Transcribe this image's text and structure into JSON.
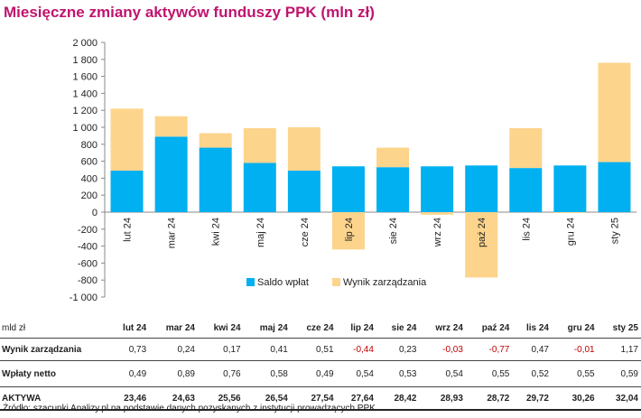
{
  "title": "Miesięczne zmiany aktywów funduszy PPK (mln zł)",
  "colors": {
    "saldo": "#00b0f0",
    "wynik": "#fdd48c",
    "title": "#c0146e",
    "negative": "#c00000"
  },
  "chart_data": {
    "type": "bar",
    "stacked": true,
    "categories": [
      "lut 24",
      "mar 24",
      "kwi 24",
      "maj 24",
      "cze 24",
      "lip 24",
      "sie 24",
      "wrz 24",
      "paź 24",
      "lis 24",
      "gru 24",
      "sty 25"
    ],
    "series": [
      {
        "name": "Saldo wpłat",
        "values": [
          490,
          890,
          760,
          580,
          490,
          540,
          530,
          540,
          550,
          520,
          550,
          590
        ]
      },
      {
        "name": "Wynik zarządzania",
        "values": [
          730,
          240,
          170,
          410,
          510,
          -440,
          230,
          -30,
          -770,
          470,
          -10,
          1170
        ]
      }
    ],
    "ylim": [
      -1000,
      2000
    ],
    "yticks": [
      -1000,
      -800,
      -600,
      -400,
      -200,
      0,
      200,
      400,
      600,
      800,
      1000,
      1200,
      1400,
      1600,
      1800,
      2000
    ],
    "ytick_labels": [
      "-1 000",
      "-800",
      "-600",
      "-400",
      "-200",
      "0",
      "200",
      "400",
      "600",
      "800",
      "1 000",
      "1 200",
      "1 400",
      "1 600",
      "1 800",
      "2 000"
    ],
    "legend": [
      "Saldo wpłat",
      "Wynik zarządzania"
    ],
    "legend_position": "bottom"
  },
  "table": {
    "unit_label": "mld zł",
    "columns": [
      "lut 24",
      "mar 24",
      "kwi 24",
      "maj 24",
      "cze 24",
      "lip 24",
      "sie 24",
      "wrz 24",
      "paź 24",
      "lis 24",
      "gru 24",
      "sty 25"
    ],
    "rows": [
      {
        "label": "Wynik zarządzania",
        "values": [
          "0,73",
          "0,24",
          "0,17",
          "0,41",
          "0,51",
          "-0,44",
          "0,23",
          "-0,03",
          "-0,77",
          "0,47",
          "-0,01",
          "1,17"
        ]
      },
      {
        "label": "Wpłaty netto",
        "values": [
          "0,49",
          "0,89",
          "0,76",
          "0,58",
          "0,49",
          "0,54",
          "0,53",
          "0,54",
          "0,55",
          "0,52",
          "0,55",
          "0,59"
        ]
      },
      {
        "label": "AKTYWA",
        "values": [
          "23,46",
          "24,63",
          "25,56",
          "26,54",
          "27,54",
          "27,64",
          "28,42",
          "28,93",
          "28,72",
          "29,72",
          "30,26",
          "32,04"
        ]
      }
    ]
  },
  "source": "Źródło: szacunki Analizy.pl na podstawie danych pozyskanych z instytucji prowadzących PPK"
}
